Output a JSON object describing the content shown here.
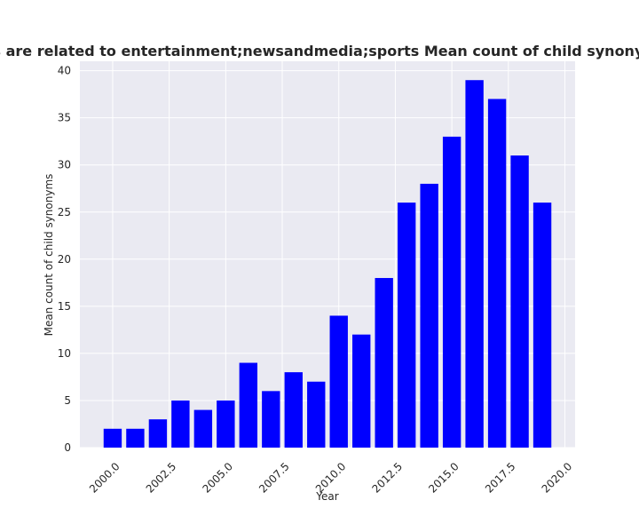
{
  "chart_data": {
    "type": "bar",
    "title": "Websites that their categories are related to entertainment;newsandmedia;sports Mean count of child synonyms in privacy policies over time",
    "xlabel": "Year",
    "ylabel": "Mean count of child synonyms",
    "x": [
      2000,
      2001,
      2002,
      2003,
      2004,
      2005,
      2006,
      2007,
      2008,
      2009,
      2010,
      2011,
      2012,
      2013,
      2014,
      2015,
      2016,
      2017,
      2018,
      2019
    ],
    "values": [
      2,
      2,
      3,
      5,
      4,
      5,
      9,
      6,
      8,
      7,
      14,
      12,
      18,
      26,
      28,
      33,
      39,
      37,
      31,
      26
    ],
    "xlim": [
      1998.55,
      2020.45
    ],
    "ylim": [
      0,
      41
    ],
    "xticks": [
      "2000.0",
      "2002.5",
      "2005.0",
      "2007.5",
      "2010.0",
      "2012.5",
      "2015.0",
      "2017.5",
      "2020.0"
    ],
    "xtick_values": [
      2000,
      2002.5,
      2005,
      2007.5,
      2010,
      2012.5,
      2015,
      2017.5,
      2020
    ],
    "yticks": [
      "0",
      "5",
      "10",
      "15",
      "20",
      "25",
      "30",
      "35",
      "40"
    ],
    "ytick_values": [
      0,
      5,
      10,
      15,
      20,
      25,
      30,
      35,
      40
    ],
    "bar_color": "#0000ff",
    "background_color": "#eaeaf2",
    "grid": true,
    "legend": "none"
  }
}
